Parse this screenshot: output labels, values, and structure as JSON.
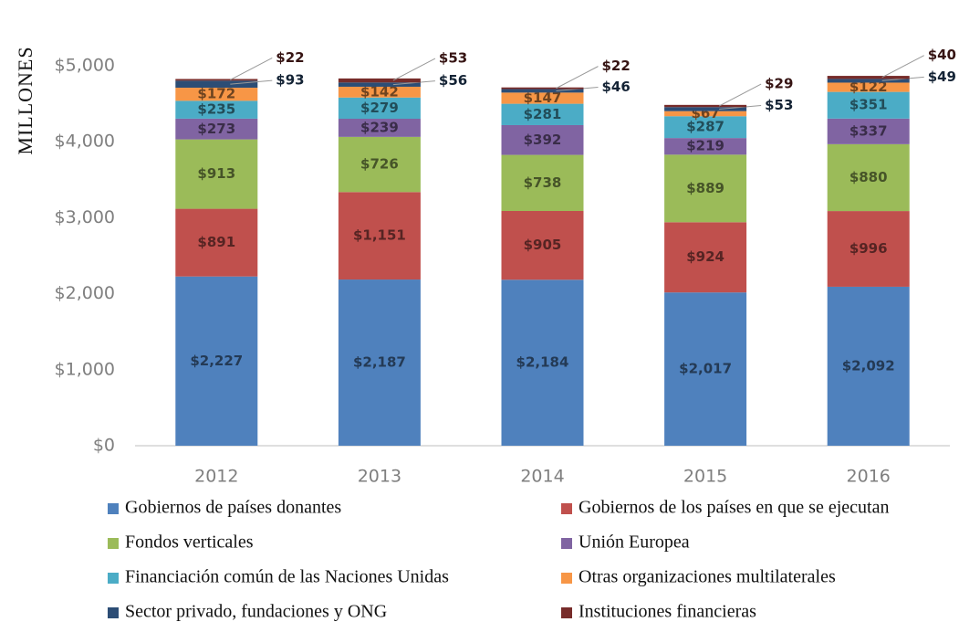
{
  "chart_data": {
    "type": "stacked_bar",
    "y_label": "MILLONES",
    "categories": [
      "2012",
      "2013",
      "2014",
      "2015",
      "2016"
    ],
    "series": [
      {
        "name": "Gobiernos de países donantes",
        "color": "#4f81bd",
        "values": [
          2227,
          2187,
          2184,
          2017,
          2092
        ],
        "value_labels": [
          "$2,227",
          "$2,187",
          "$2,184",
          "$2,017",
          "$2,092"
        ]
      },
      {
        "name": "Gobiernos de los países en que se ejecutan",
        "color": "#c0504d",
        "values": [
          891,
          1151,
          905,
          924,
          996
        ],
        "value_labels": [
          "$891",
          "$1,151",
          "$905",
          "$924",
          "$996"
        ]
      },
      {
        "name": "Fondos verticales",
        "color": "#9bbb59",
        "values": [
          913,
          726,
          738,
          889,
          880
        ],
        "value_labels": [
          "$913",
          "$726",
          "$738",
          "$889",
          "$880"
        ]
      },
      {
        "name": "Unión Europea",
        "color": "#8064a2",
        "values": [
          273,
          239,
          392,
          219,
          337
        ],
        "value_labels": [
          "$273",
          "$239",
          "$392",
          "$219",
          "$337"
        ]
      },
      {
        "name": "Financiación común de las Naciones Unidas",
        "color": "#4bacc6",
        "values": [
          235,
          279,
          281,
          287,
          351
        ],
        "value_labels": [
          "$235",
          "$279",
          "$281",
          "$287",
          "$351"
        ]
      },
      {
        "name": "Otras organizaciones multilaterales",
        "color": "#f79646",
        "values": [
          172,
          142,
          147,
          67,
          122
        ],
        "value_labels": [
          "$172",
          "$142",
          "$147",
          "$67",
          "$122"
        ]
      },
      {
        "name": "Sector privado, fundaciones y ONG",
        "color": "#2c4d75",
        "values": [
          93,
          56,
          46,
          53,
          49
        ],
        "value_labels": [
          "$93",
          "$56",
          "$46",
          "$53",
          "$49"
        ]
      },
      {
        "name": "Instituciones financieras",
        "color": "#772c2a",
        "values": [
          22,
          53,
          22,
          29,
          40
        ],
        "value_labels": [
          "$22",
          "$53",
          "$22",
          "$29",
          "$40"
        ]
      }
    ],
    "ylim": [
      0,
      5000
    ],
    "yticks": [
      {
        "value": 0,
        "label": "$0"
      },
      {
        "value": 1000,
        "label": "$1,000"
      },
      {
        "value": 2000,
        "label": "$2,000"
      },
      {
        "value": 3000,
        "label": "$3,000"
      },
      {
        "value": 4000,
        "label": "$4,000"
      },
      {
        "value": 5000,
        "label": "$5,000"
      }
    ],
    "grid": false
  }
}
